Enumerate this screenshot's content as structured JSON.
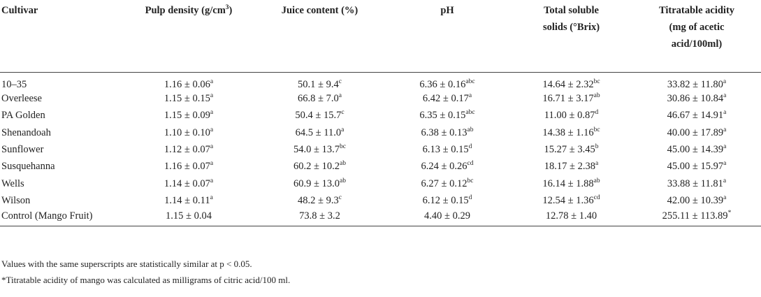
{
  "table": {
    "headers": {
      "cultivar": "Cultivar",
      "pulp_density": "Pulp density (g/cm",
      "pulp_density_sup": "3",
      "pulp_density_end": ")",
      "juice": "Juice content (%)",
      "ph": "pH",
      "tss_line1": "Total soluble",
      "tss_line2": "solids (°Brix)",
      "ta_line1": "Titratable acidity",
      "ta_line2": "(mg of acetic",
      "ta_line3": "acid/100ml)"
    },
    "rows": [
      {
        "name": "10–35",
        "pulp": "1.16 ± 0.06",
        "pulp_sup": "a",
        "juice": "50.1 ± 9.4",
        "juice_sup": "c",
        "ph": "6.36 ± 0.16",
        "ph_sup": "abc",
        "tss": "14.64 ± 2.32",
        "tss_sup": "bc",
        "ta": "33.82 ± 11.80",
        "ta_sup": "a"
      },
      {
        "name": "Overleese",
        "pulp": "1.15 ± 0.15",
        "pulp_sup": "a",
        "juice": "66.8 ± 7.0",
        "juice_sup": "a",
        "ph": "6.42 ± 0.17",
        "ph_sup": "a",
        "tss": "16.71 ± 3.17",
        "tss_sup": "ab",
        "ta": "30.86 ± 10.84",
        "ta_sup": "a"
      },
      {
        "name": "PA Golden",
        "pulp": "1.15 ± 0.09",
        "pulp_sup": "a",
        "juice": "50.4 ± 15.7",
        "juice_sup": "c",
        "ph": "6.35 ± 0.15",
        "ph_sup": "abc",
        "tss": "11.00 ± 0.87",
        "tss_sup": "d",
        "ta": "46.67 ± 14.91",
        "ta_sup": "a"
      },
      {
        "name": "Shenandoah",
        "pulp": "1.10 ± 0.10",
        "pulp_sup": "a",
        "juice": "64.5 ± 11.0",
        "juice_sup": "a",
        "ph": "6.38 ± 0.13",
        "ph_sup": "ab",
        "tss": "14.38 ± 1.16",
        "tss_sup": "bc",
        "ta": "40.00 ± 17.89",
        "ta_sup": "a"
      },
      {
        "name": "Sunflower",
        "pulp": "1.12 ± 0.07",
        "pulp_sup": "a",
        "juice": "54.0 ± 13.7",
        "juice_sup": "bc",
        "ph": "6.13 ± 0.15",
        "ph_sup": "d",
        "tss": "15.27 ± 3.45",
        "tss_sup": "b",
        "ta": "45.00 ± 14.39",
        "ta_sup": "a"
      },
      {
        "name": "Susquehanna",
        "pulp": "1.16 ± 0.07",
        "pulp_sup": "a",
        "juice": "60.2 ± 10.2",
        "juice_sup": "ab",
        "ph": "6.24 ± 0.26",
        "ph_sup": "cd",
        "tss": "18.17 ± 2.38",
        "tss_sup": "a",
        "ta": "45.00 ± 15.97",
        "ta_sup": "a"
      },
      {
        "name": "Wells",
        "pulp": "1.14 ± 0.07",
        "pulp_sup": "a",
        "juice": "60.9 ± 13.0",
        "juice_sup": "ab",
        "ph": "6.27 ± 0.12",
        "ph_sup": "bc",
        "tss": "16.14 ± 1.88",
        "tss_sup": "ab",
        "ta": "33.88 ± 11.81",
        "ta_sup": "a"
      },
      {
        "name": "Wilson",
        "pulp": "1.14 ± 0.11",
        "pulp_sup": "a",
        "juice": "48.2 ± 9.3",
        "juice_sup": "c",
        "ph": "6.12 ± 0.15",
        "ph_sup": "d",
        "tss": "12.54 ± 1.36",
        "tss_sup": "cd",
        "ta": "42.00 ± 10.39",
        "ta_sup": "a"
      },
      {
        "name": "Control (Mango Fruit)",
        "pulp": "1.15 ± 0.04",
        "pulp_sup": "",
        "juice": "73.8 ± 3.2",
        "juice_sup": "",
        "ph": "4.40 ± 0.29",
        "ph_sup": "",
        "tss": "12.78 ± 1.40",
        "tss_sup": "",
        "ta": "255.11 ± 113.89",
        "ta_sup": "*"
      }
    ]
  },
  "notes": {
    "line1": "Values with the same superscripts are statistically similar at p < 0.05.",
    "line2": "*Titratable acidity of mango was calculated as milligrams of citric acid/100 ml."
  }
}
